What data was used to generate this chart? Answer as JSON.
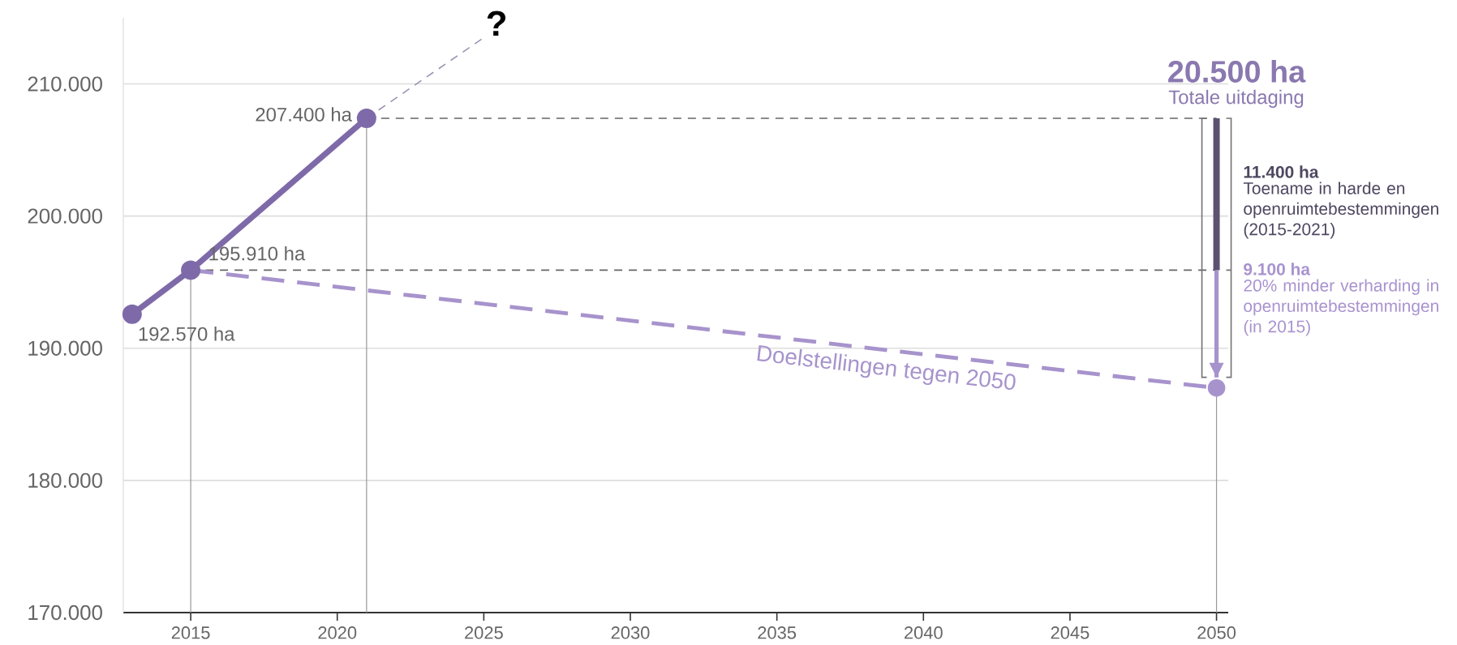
{
  "chart_data": {
    "type": "line",
    "xlim": [
      2012.7,
      2050.4
    ],
    "ylim": [
      170000,
      215000
    ],
    "xticks": [
      2015,
      2020,
      2025,
      2030,
      2035,
      2040,
      2045,
      2050
    ],
    "yticks": [
      {
        "value": 170000,
        "label": "170.000"
      },
      {
        "value": 180000,
        "label": "180.000"
      },
      {
        "value": 190000,
        "label": "190.000"
      },
      {
        "value": 200000,
        "label": "200.000"
      },
      {
        "value": 210000,
        "label": "210.000"
      }
    ],
    "grid": "y",
    "series": [
      {
        "color": "#999999",
        "x": [
          2015,
          2015
        ],
        "values": [
          170000,
          195910
        ],
        "line_style": "solid",
        "marker": "none"
      },
      {
        "color": "#999999",
        "x": [
          2021,
          2021
        ],
        "values": [
          170000,
          207400
        ],
        "line_style": "solid",
        "marker": "none"
      },
      {
        "color": "#999999",
        "x": [
          2050,
          2050
        ],
        "values": [
          170000,
          187000
        ],
        "line_style": "solid",
        "marker": "none"
      },
      {
        "color": "#666666",
        "x": [
          2021,
          2050
        ],
        "values": [
          207400,
          207400
        ],
        "line_style": "dashed",
        "marker": "none"
      },
      {
        "color": "#666666",
        "x": [
          2015,
          2050
        ],
        "values": [
          195910,
          195910
        ],
        "line_style": "dashed",
        "marker": "none"
      },
      {
        "color": "#9c92b4",
        "x": [
          2021,
          2025
        ],
        "values": [
          207400,
          213500
        ],
        "line_style": "dashed",
        "marker": "none"
      },
      {
        "name": "Doelstellingen tegen 2050",
        "color": "#a793cc",
        "x": [
          2015,
          2050
        ],
        "values": [
          195910,
          187000
        ],
        "line_style": "dashed",
        "marker": "circle"
      },
      {
        "color": "#5c5270",
        "x": [
          2050,
          2050
        ],
        "values": [
          207400,
          195910
        ],
        "line_style": "solid",
        "marker": "none"
      },
      {
        "color": "#a793cc",
        "x": [
          2050,
          2050
        ],
        "values": [
          195910,
          187800
        ],
        "line_style": "solid",
        "marker": "none"
      },
      {
        "color": "#7e6aa8",
        "x": [
          2013,
          2015,
          2021
        ],
        "values": [
          192570,
          195910,
          207400
        ],
        "line_style": "solid",
        "marker": "circle",
        "value_labels": [
          "192.570 ha",
          "195.910 ha",
          "207.400 ha"
        ]
      }
    ],
    "annotations": [
      {
        "text": "?",
        "x": 2025,
        "y": 213500
      },
      "20.500 ha",
      "Totale uitdaging",
      "11.400 ha",
      "Toename in harde en openruimtebestemmingen (2015-2021)",
      "9.100 ha",
      "20% minder verharding in openruimtebestemmingen (in 2015)"
    ]
  }
}
